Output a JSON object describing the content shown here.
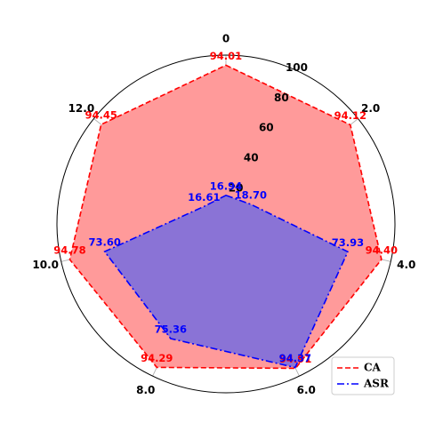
{
  "chart_data": {
    "type": "radar",
    "categories": [
      "0",
      "2.0",
      "4.0",
      "6.0",
      "8.0",
      "10.0",
      "12.0"
    ],
    "rlim": [
      0,
      100
    ],
    "r_ticks": [
      20,
      40,
      60,
      80,
      100
    ],
    "grid": true,
    "legend_position": "bottom-right",
    "series": [
      {
        "name": "CA",
        "values": [
          94.01,
          94.12,
          94.4,
          94.91,
          94.29,
          94.78,
          94.45
        ],
        "labels": [
          "94.01",
          "94.12",
          "94.40",
          "94.91",
          "94.29",
          "94.78",
          "94.45"
        ],
        "color": "#ff0000",
        "fill": "#ff9a9a",
        "line_style": "dashed"
      },
      {
        "name": "ASR",
        "values": [
          16.94,
          18.7,
          73.93,
          94.37,
          75.36,
          73.6,
          16.61
        ],
        "labels": [
          "16.94",
          "18.70",
          "73.93",
          "94.37",
          "75.36",
          "73.60",
          "16.61"
        ],
        "color": "#0000ff",
        "fill": "#8a73d6",
        "line_style": "dashdot"
      }
    ]
  }
}
